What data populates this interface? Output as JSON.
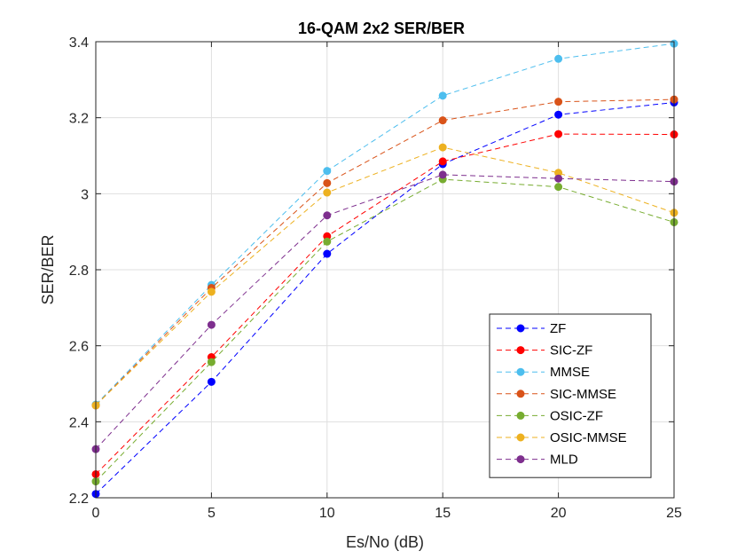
{
  "chart_data": {
    "type": "line",
    "title": "16-QAM 2x2 SER/BER",
    "xlabel": "Es/No (dB)",
    "ylabel": "SER/BER",
    "x": [
      0,
      5,
      10,
      15,
      20,
      25
    ],
    "xlim": [
      0,
      25
    ],
    "ylim": [
      2.2,
      3.4
    ],
    "xticks": [
      0,
      5,
      10,
      15,
      20,
      25
    ],
    "yticks": [
      2.2,
      2.4,
      2.6,
      2.8,
      3.0,
      3.2,
      3.4
    ],
    "xtick_labels": [
      "0",
      "5",
      "10",
      "15",
      "20",
      "25"
    ],
    "ytick_labels": [
      "2.2",
      "2.4",
      "2.6",
      "2.8",
      "3",
      "3.2",
      "3.4"
    ],
    "grid": true,
    "legend_position": "bottom-right",
    "series": [
      {
        "name": "ZF",
        "color": "#0000ff",
        "values": [
          2.21,
          2.505,
          2.842,
          3.078,
          3.208,
          3.24
        ]
      },
      {
        "name": "SIC-ZF",
        "color": "#ff0000",
        "values": [
          2.262,
          2.57,
          2.888,
          3.085,
          3.157,
          3.156
        ]
      },
      {
        "name": "MMSE",
        "color": "#4dbeee",
        "values": [
          2.445,
          2.76,
          3.06,
          3.258,
          3.355,
          3.395
        ]
      },
      {
        "name": "SIC-MMSE",
        "color": "#d95319",
        "values": [
          2.443,
          2.752,
          3.028,
          3.193,
          3.242,
          3.248
        ]
      },
      {
        "name": "OSIC-ZF",
        "color": "#77ac30",
        "values": [
          2.243,
          2.557,
          2.874,
          3.038,
          3.018,
          2.925
        ]
      },
      {
        "name": "OSIC-MMSE",
        "color": "#edb120",
        "values": [
          2.443,
          2.742,
          3.003,
          3.122,
          3.055,
          2.95
        ]
      },
      {
        "name": "MLD",
        "color": "#7e2f8e",
        "values": [
          2.328,
          2.655,
          2.943,
          3.05,
          3.04,
          3.032
        ]
      }
    ]
  }
}
